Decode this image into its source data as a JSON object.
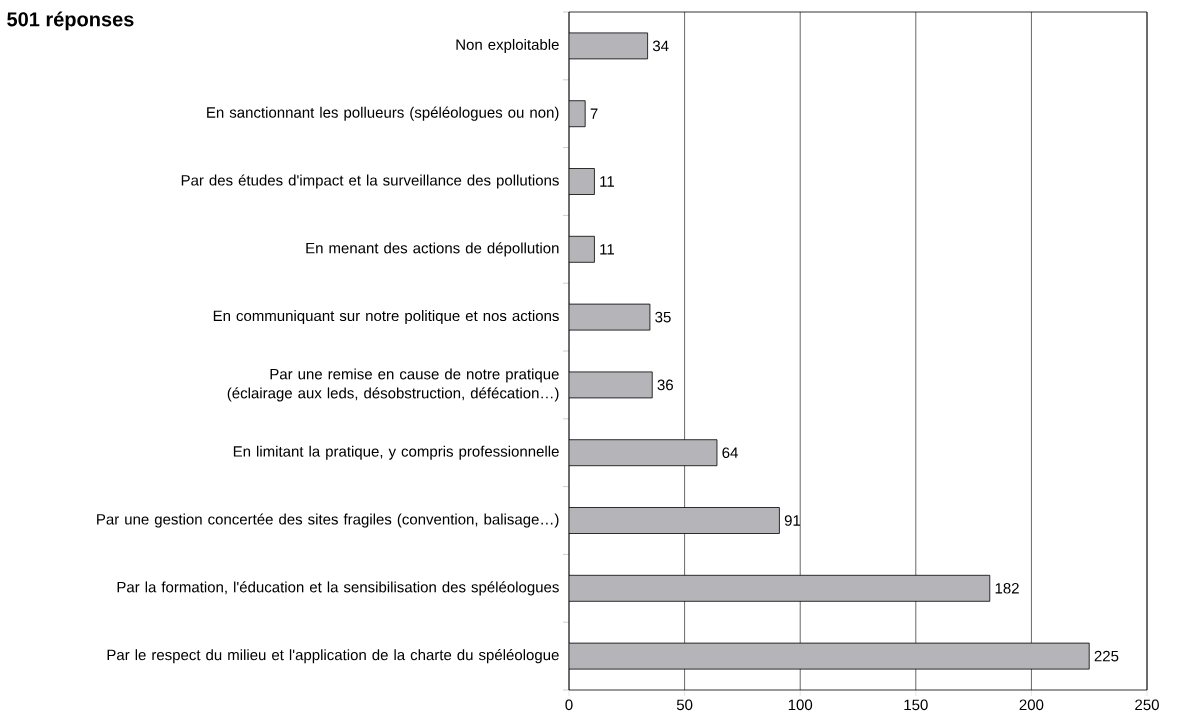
{
  "chart_data": {
    "type": "bar",
    "orientation": "horizontal",
    "title": "501 réponses",
    "categories": [
      "Non exploitable",
      "En sanctionnant les pollueurs (spéléologues ou non)",
      "Par des études d'impact et la surveillance des pollutions",
      "En menant des actions de dépollution",
      "En communiquant sur notre politique et nos actions",
      "Par une remise en cause de notre pratique (éclairage aux leds, désobstruction, défécation…)",
      "En limitant la pratique, y compris professionnelle",
      "Par une gestion concertée des sites fragiles (convention, balisage…)",
      "Par la formation, l'éducation et la sensibilisation des spéléologues",
      "Par le respect du milieu et l'application de la charte du spéléologue"
    ],
    "values": [
      34,
      7,
      11,
      11,
      35,
      36,
      64,
      91,
      182,
      225
    ],
    "color": "#b4b4b9",
    "xlim": [
      0,
      250
    ],
    "xticks": [
      0,
      50,
      100,
      150,
      200,
      250
    ],
    "grid": "x",
    "data_labels": true
  }
}
